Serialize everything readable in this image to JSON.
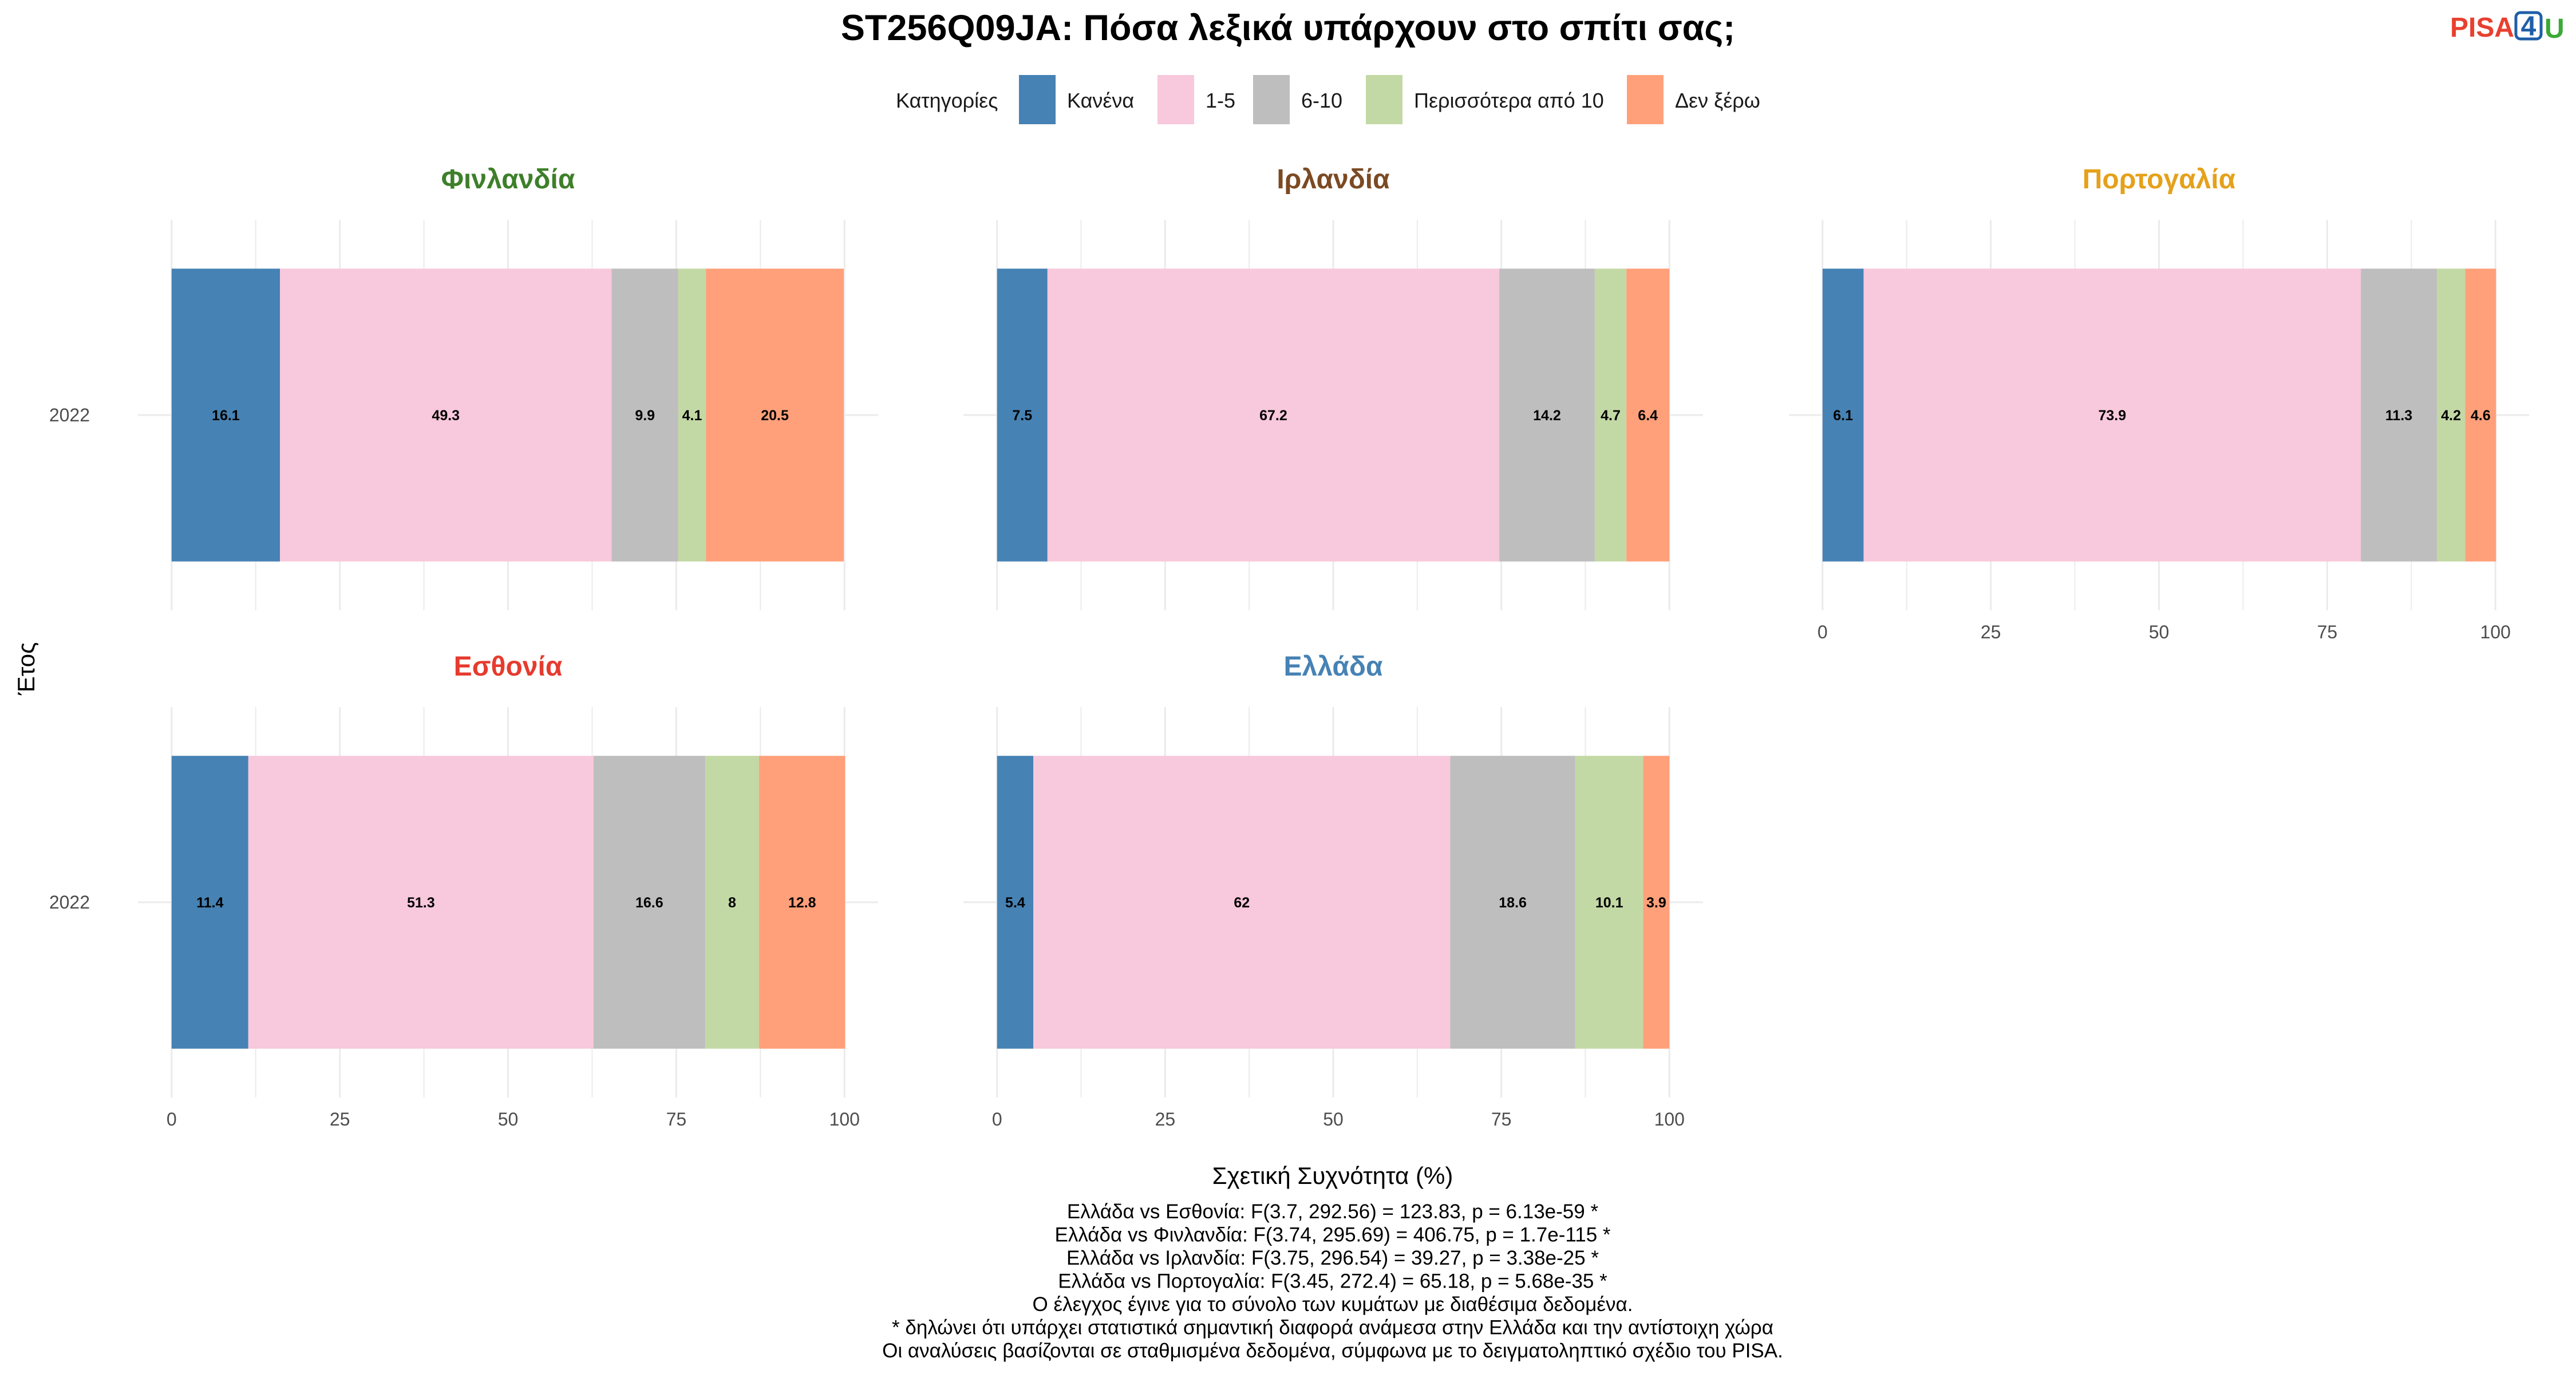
{
  "chart_data": {
    "type": "bar",
    "orientation": "horizontal",
    "stacked": true,
    "title": "ST256Q09JA: Πόσα λεξικά υπάρχουν στο σπίτι σας;",
    "xlabel": "Σχετική Συχνότητα (%)",
    "ylabel": "Έτος",
    "xlim": [
      0,
      100
    ],
    "xticks": [
      "0",
      "25",
      "50",
      "75",
      "100"
    ],
    "grid": true,
    "legend": {
      "title": "Κατηγορίες",
      "position": "top",
      "entries": [
        {
          "label": "Κανένα",
          "color": "#4682B4"
        },
        {
          "label": "1-5",
          "color": "#F8C8DC"
        },
        {
          "label": "6-10",
          "color": "#BEBEBE"
        },
        {
          "label": "Περισσότερα από 10",
          "color": "#C3D9A5"
        },
        {
          "label": "Δεν ξέρω",
          "color": "#FFA07A"
        }
      ]
    },
    "panels": [
      {
        "name": "Φινλανδία",
        "color": "#3E7F2A",
        "year": "2022",
        "values": [
          16.1,
          49.3,
          9.9,
          4.1,
          20.5
        ]
      },
      {
        "name": "Ιρλανδία",
        "color": "#7B4A23",
        "year": "2022",
        "values": [
          7.5,
          67.2,
          14.2,
          4.7,
          6.4
        ]
      },
      {
        "name": "Πορτογαλία",
        "color": "#E5A11B",
        "year": "2022",
        "values": [
          6.1,
          73.9,
          11.3,
          4.2,
          4.6
        ]
      },
      {
        "name": "Εσθονία",
        "color": "#E63B2E",
        "year": "2022",
        "values": [
          11.4,
          51.3,
          16.6,
          8,
          12.8
        ]
      },
      {
        "name": "Ελλάδα",
        "color": "#4682B4",
        "year": "2022",
        "values": [
          5.4,
          62,
          18.6,
          10.1,
          3.9
        ]
      }
    ]
  },
  "notes": [
    "Ελλάδα vs Εσθονία: F(3.7, 292.56) = 123.83, p = 6.13e-59 *",
    "Ελλάδα vs Φινλανδία: F(3.74, 295.69) = 406.75, p = 1.7e-115 *",
    "Ελλάδα vs Ιρλανδία: F(3.75, 296.54) = 39.27, p = 3.38e-25 *",
    "Ελλάδα vs Πορτογαλία: F(3.45, 272.4) = 65.18, p = 5.68e-35 *",
    "Ο έλεγχος έγινε για το σύνολο των κυμάτων με διαθέσιμα δεδομένα.",
    "* δηλώνει ότι υπάρχει στατιστικά σημαντική διαφορά ανάμεσα στην Ελλάδα και την αντίστοιχη χώρα",
    "Οι αναλύσεις βασίζονται σε σταθμισμένα δεδομένα, σύμφωνα με το δειγματοληπτικό σχέδιο του PISA."
  ],
  "logo": {
    "text": "PISA4U",
    "pisa": "PISA",
    "four": "4",
    "u": "U",
    "colors": {
      "pisa": "#E8402F",
      "four": "#1F5FA8",
      "u": "#3AA935"
    }
  }
}
